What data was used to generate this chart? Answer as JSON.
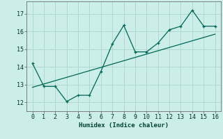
{
  "xlabel": "Humidex (Indice chaleur)",
  "bg_color": "#cceee8",
  "grid_color": "#aad4cc",
  "line_color": "#006655",
  "marker_color": "#006655",
  "xlim": [
    -0.5,
    16.5
  ],
  "ylim": [
    11.5,
    17.7
  ],
  "xticks": [
    0,
    1,
    2,
    3,
    4,
    5,
    6,
    7,
    8,
    9,
    10,
    11,
    12,
    13,
    14,
    15,
    16
  ],
  "yticks": [
    12,
    13,
    14,
    15,
    16,
    17
  ],
  "curve_x": [
    0,
    1,
    2,
    3,
    4,
    5,
    6,
    7,
    8,
    9,
    10,
    11,
    12,
    13,
    14,
    15,
    16
  ],
  "curve_y": [
    14.2,
    12.9,
    12.9,
    12.05,
    12.4,
    12.4,
    13.75,
    15.3,
    16.35,
    14.85,
    14.85,
    15.35,
    16.1,
    16.3,
    17.2,
    16.3,
    16.3
  ],
  "trend_x": [
    0,
    16
  ],
  "trend_y": [
    12.85,
    15.85
  ]
}
